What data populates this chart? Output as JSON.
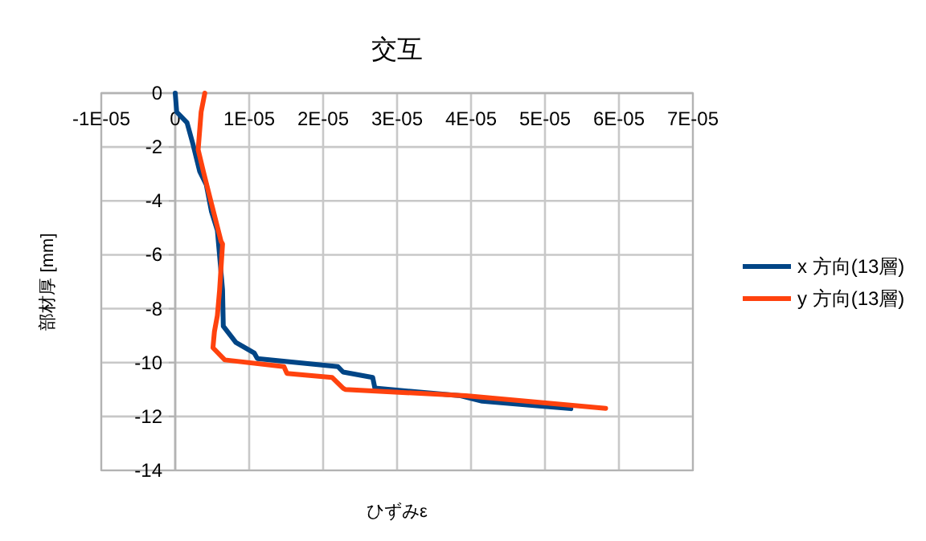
{
  "chart_data": {
    "type": "line",
    "title": "交互",
    "xlabel": "ひずみε",
    "ylabel": "部材厚 [mm]",
    "xlim": [
      -1e-05,
      7e-05
    ],
    "ylim": [
      -14,
      0
    ],
    "xticks": [
      {
        "value": -1e-05,
        "label": "-1E-05"
      },
      0,
      {
        "value": 1e-05,
        "label": "1E-05"
      },
      {
        "value": 2e-05,
        "label": "2E-05"
      },
      {
        "value": 3e-05,
        "label": "3E-05"
      },
      {
        "value": 4e-05,
        "label": "4E-05"
      },
      {
        "value": 5e-05,
        "label": "5E-05"
      },
      {
        "value": 6e-05,
        "label": "6E-05"
      },
      {
        "value": 7e-05,
        "label": "7E-05"
      }
    ],
    "yticks": [
      0,
      -2,
      -4,
      -6,
      -8,
      -10,
      -12,
      -14
    ],
    "grid": true,
    "legend": "right",
    "marker": "none",
    "line_style": "solid",
    "series": [
      {
        "name": "x 方向(13層)",
        "color": "#004586",
        "x": [
          0,
          2e-07,
          1.6e-06,
          2.4e-06,
          3.3e-06,
          4.2e-06,
          4.9e-06,
          5.7e-06,
          6.4e-06,
          6.5e-06,
          8.2e-06,
          1.07e-05,
          1.11e-05,
          2.2e-05,
          2.27e-05,
          2.67e-05,
          2.7e-05,
          3.86e-05,
          4.15e-05,
          5.35e-05
        ],
        "values": [
          0,
          -0.7,
          -1.1,
          -1.9,
          -2.9,
          -3.4,
          -4.4,
          -5.1,
          -7.3,
          -8.65,
          -9.25,
          -9.65,
          -9.85,
          -10.15,
          -10.35,
          -10.55,
          -10.95,
          -11.23,
          -11.43,
          -11.71
        ]
      },
      {
        "name": "y 方向(13層)",
        "color": "#ff420e",
        "x": [
          4e-06,
          3.5e-06,
          3.1e-06,
          3.8e-06,
          4.9e-06,
          6.2e-06,
          6.4e-06,
          6e-06,
          5.7e-06,
          5.3e-06,
          5.1e-06,
          6.7e-06,
          1.47e-05,
          1.51e-05,
          2.12e-05,
          2.27e-05,
          2.3e-05,
          3.93e-05,
          5.82e-05
        ],
        "values": [
          0,
          -0.7,
          -2.1,
          -2.9,
          -4.1,
          -5.5,
          -5.6,
          -7.3,
          -8.25,
          -8.85,
          -9.45,
          -9.9,
          -10.15,
          -10.4,
          -10.55,
          -10.95,
          -11.0,
          -11.23,
          -11.7
        ]
      }
    ]
  }
}
